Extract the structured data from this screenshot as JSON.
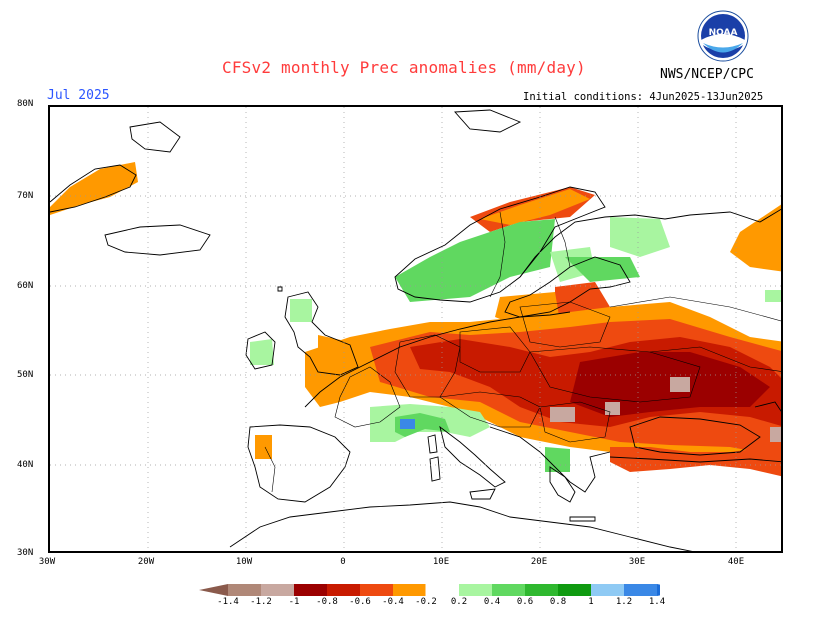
{
  "header": {
    "title": "CFSv2 monthly Prec anomalies (mm/day)",
    "month": "Jul 2025",
    "agency": "NWS/NCEP/CPC",
    "initial_conditions": "Initial conditions: 4Jun2025-13Jun2025",
    "logo_text": "NOAA"
  },
  "axes": {
    "lat_labels": [
      "80N",
      "70N",
      "60N",
      "50N",
      "40N",
      "30N"
    ],
    "lon_labels": [
      "30W",
      "20W",
      "10W",
      "0",
      "10E",
      "20E",
      "30E",
      "40E"
    ]
  },
  "colorbar": {
    "labels": [
      "-1.4",
      "-1.2",
      "-1",
      "-0.8",
      "-0.6",
      "-0.4",
      "-0.2",
      "0.2",
      "0.4",
      "0.6",
      "0.8",
      "1",
      "1.2",
      "1.4"
    ],
    "colors": [
      "#8a5a4c",
      "#b08878",
      "#c8a8a0",
      "#9b0000",
      "#c81a00",
      "#ee4a10",
      "#ff9900",
      "#ffffff",
      "#a8f5a0",
      "#60d860",
      "#2fb82f",
      "#0f9a10",
      "#8fcaf4",
      "#3a88e6",
      "#1a6cd8"
    ]
  },
  "legend_colors": {
    "title": "#ff3b3b",
    "month": "#2b55ff",
    "dry_strong": "#9b0000",
    "dry": "#c81a00",
    "dry_moderate": "#ee4a10",
    "dry_weak": "#ff9900",
    "wet_weak": "#a8f5a0",
    "wet": "#60d860",
    "wet_strong": "#2fb82f",
    "very_wet": "#3a88e6"
  }
}
